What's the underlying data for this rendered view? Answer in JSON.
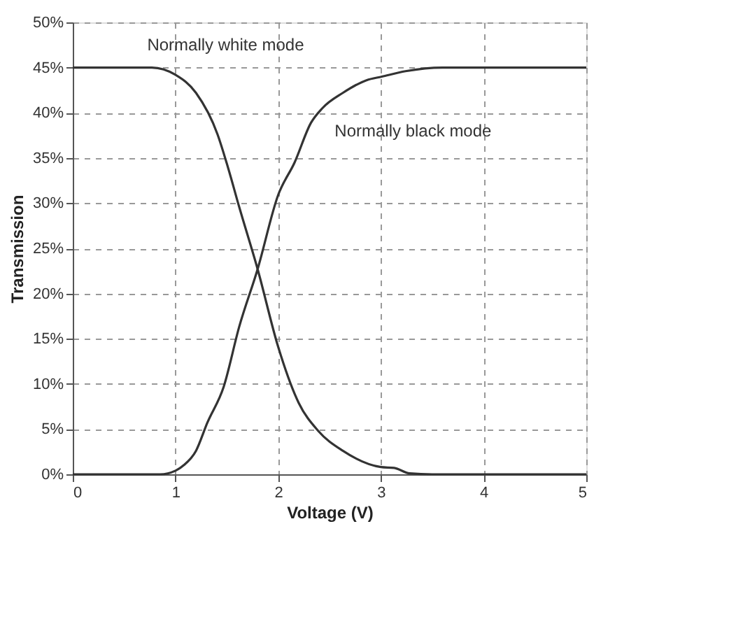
{
  "chart_data": {
    "type": "line",
    "xlabel": "Voltage (V)",
    "ylabel": "Transmission",
    "xlim": [
      0,
      5
    ],
    "xticks": [
      0,
      1,
      2,
      3,
      4,
      5
    ],
    "ylim": [
      0,
      50
    ],
    "yticks": [
      {
        "value": 0,
        "label": "0%"
      },
      {
        "value": 5,
        "label": "5%"
      },
      {
        "value": 10,
        "label": "10%"
      },
      {
        "value": 15,
        "label": "15%"
      },
      {
        "value": 20,
        "label": "20%"
      },
      {
        "value": 25,
        "label": "25%"
      },
      {
        "value": 30,
        "label": "30%"
      },
      {
        "value": 35,
        "label": "35%"
      },
      {
        "value": 40,
        "label": "40%"
      },
      {
        "value": 45,
        "label": "45%"
      },
      {
        "value": 50,
        "label": "50%"
      }
    ],
    "grid": true,
    "marker": "none",
    "line_style": "solid",
    "series": [
      {
        "color": "#333333",
        "x": [
          0,
          0.5,
          0.77,
          1.0,
          1.2,
          1.41,
          1.51,
          1.62,
          1.8,
          2.0,
          2.2,
          2.39,
          2.63,
          3.0,
          3.13,
          3.28,
          3.5,
          4,
          5
        ],
        "values": [
          45,
          45,
          45,
          44.2,
          42.2,
          37.6,
          34,
          29.6,
          22.7,
          14.1,
          7.9,
          4.8,
          2.6,
          0.8,
          0.7,
          0.1,
          0,
          0,
          0
        ]
      },
      {
        "color": "#333333",
        "x": [
          0,
          0.5,
          0.85,
          1.0,
          1.08,
          1.2,
          1.31,
          1.47,
          1.62,
          1.8,
          2.0,
          2.16,
          2.32,
          2.43,
          2.63,
          2.86,
          3.01,
          3.24,
          3.6,
          4,
          5
        ],
        "values": [
          0,
          0,
          0,
          0.4,
          1.0,
          2.6,
          5.7,
          9.7,
          16.3,
          22.7,
          30.9,
          34.5,
          38.9,
          40.5,
          42.2,
          43.6,
          44,
          44.6,
          45,
          45,
          45
        ]
      }
    ],
    "annotations": [
      "Normally white mode",
      "Normally black mode"
    ]
  }
}
